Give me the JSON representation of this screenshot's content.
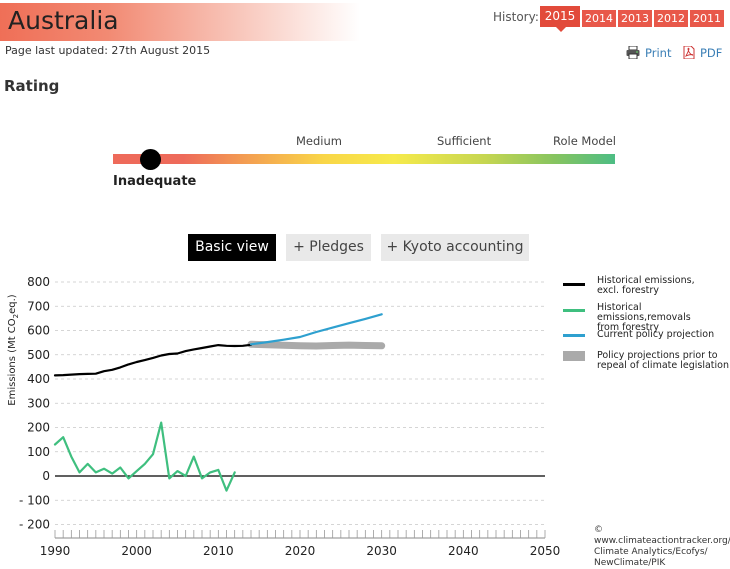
{
  "header": {
    "title": "Australia",
    "updated": "Page last updated: 27th August 2015",
    "history_label": "History:",
    "history_years": [
      "2015",
      "2014",
      "2013",
      "2012",
      "2011"
    ],
    "history_selected": "2015",
    "print_label": "Print",
    "pdf_label": "PDF"
  },
  "rating": {
    "heading": "Rating",
    "labels": [
      "Medium",
      "Sufficient",
      "Role Model"
    ],
    "current": "Inadequate",
    "colors": [
      "#ee6a5a",
      "#f39c52",
      "#f9d648",
      "#c6d651",
      "#4dbd84"
    ]
  },
  "views": {
    "buttons": [
      "Basic view",
      "+ Pledges",
      "+ Kyoto accounting"
    ],
    "selected": "Basic view"
  },
  "chart_data": {
    "type": "line",
    "ylabel": "Emissions (Mt CO2eq.)",
    "xlim": [
      1990,
      2050
    ],
    "ylim": [
      -200,
      800
    ],
    "x_ticks": [
      1990,
      2000,
      2010,
      2020,
      2030,
      2040,
      2050
    ],
    "y_ticks": [
      -200,
      -100,
      0,
      100,
      200,
      300,
      400,
      500,
      600,
      700,
      800
    ],
    "grid": true,
    "legend_position": "right",
    "series": [
      {
        "name": "Historical emissions, excl. forestry",
        "color": "#000000",
        "x": [
          1990,
          1991,
          1992,
          1993,
          1994,
          1995,
          1996,
          1997,
          1998,
          1999,
          2000,
          2001,
          2002,
          2003,
          2004,
          2005,
          2006,
          2007,
          2008,
          2009,
          2010,
          2011,
          2012,
          2013,
          2014
        ],
        "y": [
          415,
          416,
          418,
          420,
          421,
          422,
          432,
          438,
          448,
          460,
          470,
          478,
          487,
          497,
          503,
          505,
          515,
          522,
          528,
          534,
          540,
          537,
          536,
          537,
          541
        ]
      },
      {
        "name": "Historical emissions, removals from forestry",
        "color": "#3fbf7f",
        "x": [
          1990,
          1991,
          1992,
          1993,
          1994,
          1995,
          1996,
          1997,
          1998,
          1999,
          2000,
          2001,
          2002,
          2003,
          2004,
          2005,
          2006,
          2007,
          2008,
          2009,
          2010,
          2011,
          2012,
          2013,
          2014
        ],
        "y": [
          130,
          160,
          80,
          15,
          50,
          15,
          30,
          10,
          35,
          -10,
          20,
          50,
          90,
          220,
          -10,
          20,
          0,
          80,
          -10,
          15,
          25,
          -60,
          15,
          null,
          null
        ]
      },
      {
        "name": "Current policy projection",
        "color": "#2ea0cf",
        "x": [
          2014,
          2016,
          2018,
          2020,
          2022,
          2024,
          2026,
          2028,
          2030
        ],
        "y": [
          543,
          552,
          562,
          573,
          594,
          612,
          630,
          648,
          667
        ]
      },
      {
        "name": "Policy projections prior to repeal of climate legislation",
        "color": "#aaaaaa",
        "x": [
          2014,
          2016,
          2018,
          2020,
          2022,
          2024,
          2026,
          2028,
          2030
        ],
        "y": [
          543,
          541,
          539,
          537,
          536,
          538,
          540,
          538,
          537
        ]
      }
    ]
  },
  "legend": [
    "Historical emissions,\nexcl. forestry",
    "Historical emissions,removals\nfrom forestry",
    "Current policy projection",
    "Policy projections prior to\nrepeal of climate legislation"
  ],
  "credit": "© www.climateactiontracker.org/\nClimate Analytics/Ecofys/\nNewClimate/PIK"
}
